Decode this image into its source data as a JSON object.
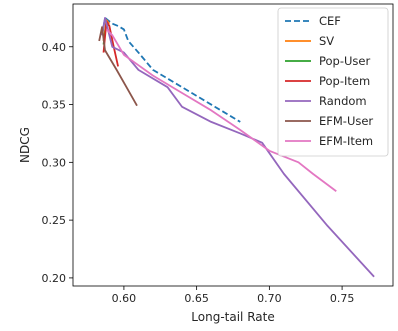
{
  "chart_data": {
    "type": "line",
    "title": "",
    "xlabel": "Long-tail Rate",
    "ylabel": "NDCG",
    "xlim": [
      0.565,
      0.785
    ],
    "ylim": [
      0.193,
      0.437
    ],
    "xticks": [
      {
        "value": 0.6,
        "label": "0.60"
      },
      {
        "value": 0.65,
        "label": "0.65"
      },
      {
        "value": 0.7,
        "label": "0.70"
      },
      {
        "value": 0.75,
        "label": "0.75"
      }
    ],
    "yticks": [
      {
        "value": 0.2,
        "label": "0.20"
      },
      {
        "value": 0.25,
        "label": "0.25"
      },
      {
        "value": 0.3,
        "label": "0.30"
      },
      {
        "value": 0.35,
        "label": "0.35"
      },
      {
        "value": 0.4,
        "label": "0.40"
      }
    ],
    "grid": false,
    "legend_position": "top-right",
    "series": [
      {
        "name": "CEF",
        "color": "#1f77b4",
        "dash": true,
        "x": [
          0.585,
          0.587,
          0.589,
          0.592,
          0.596,
          0.6,
          0.603,
          0.61,
          0.62,
          0.64,
          0.66,
          0.68
        ],
        "y": [
          0.41,
          0.425,
          0.423,
          0.42,
          0.418,
          0.415,
          0.405,
          0.395,
          0.38,
          0.365,
          0.35,
          0.335
        ]
      },
      {
        "name": "SV",
        "color": "#ff7f0e",
        "dash": false,
        "x": [
          0.586,
          0.588,
          0.59
        ],
        "y": [
          0.405,
          0.423,
          0.42
        ]
      },
      {
        "name": "Pop-User",
        "color": "#2ca02c",
        "dash": false,
        "x": [
          0.586,
          0.588,
          0.59
        ],
        "y": [
          0.402,
          0.421,
          0.418
        ]
      },
      {
        "name": "Pop-Item",
        "color": "#d62728",
        "dash": false,
        "x": [
          0.586,
          0.588,
          0.59,
          0.593,
          0.596
        ],
        "y": [
          0.395,
          0.422,
          0.418,
          0.4,
          0.383
        ]
      },
      {
        "name": "Random",
        "color": "#9467bd",
        "dash": false,
        "x": [
          0.585,
          0.587,
          0.592,
          0.6,
          0.61,
          0.63,
          0.64,
          0.66,
          0.68,
          0.695,
          0.71,
          0.74,
          0.772
        ],
        "y": [
          0.41,
          0.425,
          0.4,
          0.395,
          0.38,
          0.365,
          0.348,
          0.335,
          0.325,
          0.317,
          0.29,
          0.245,
          0.201
        ]
      },
      {
        "name": "EFM-User",
        "color": "#8c564b",
        "dash": false,
        "x": [
          0.583,
          0.585,
          0.587,
          0.595,
          0.609
        ],
        "y": [
          0.405,
          0.417,
          0.397,
          0.38,
          0.349
        ]
      },
      {
        "name": "EFM-Item",
        "color": "#e377c2",
        "dash": false,
        "x": [
          0.588,
          0.592,
          0.6,
          0.62,
          0.64,
          0.66,
          0.68,
          0.7,
          0.72,
          0.73,
          0.746
        ],
        "y": [
          0.415,
          0.41,
          0.393,
          0.375,
          0.36,
          0.345,
          0.328,
          0.31,
          0.3,
          0.29,
          0.275
        ]
      }
    ]
  }
}
